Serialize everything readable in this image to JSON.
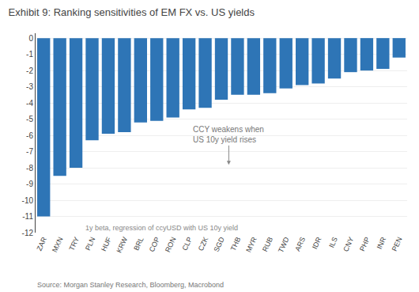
{
  "chart_data": {
    "type": "bar",
    "title": "Exhibit 9: Ranking sensitivities of EM FX vs. US yields",
    "subtitle": "1y beta, regression of ccyUSD with US 10y yield",
    "annotation": "CCY weakens when\nUS 10y yield rises",
    "source": "Source: Morgan Stanley Research, Bloomberg, Macrobond",
    "categories": [
      "ZAR",
      "MXN",
      "TRY",
      "PLN",
      "HUF",
      "KRW",
      "BRL",
      "COP",
      "RON",
      "CLP",
      "CZK",
      "SGD",
      "THB",
      "MYR",
      "RUB",
      "TWD",
      "ARS",
      "IDR",
      "ILS",
      "CNY",
      "PHP",
      "INR",
      "PEN"
    ],
    "values": [
      -11.0,
      -8.5,
      -8.0,
      -6.3,
      -5.9,
      -5.8,
      -5.2,
      -5.1,
      -4.9,
      -4.4,
      -4.3,
      -3.8,
      -3.5,
      -3.5,
      -3.4,
      -3.1,
      -2.9,
      -2.8,
      -2.5,
      -2.1,
      -2.0,
      -1.9,
      -1.2
    ],
    "color": "#2E75B6",
    "ylim": [
      -12,
      0.3
    ],
    "yticks": [
      0,
      -1,
      -2,
      -3,
      -4,
      -5,
      -6,
      -7,
      -8,
      -9,
      -10,
      -11,
      -12
    ],
    "grid": true
  }
}
